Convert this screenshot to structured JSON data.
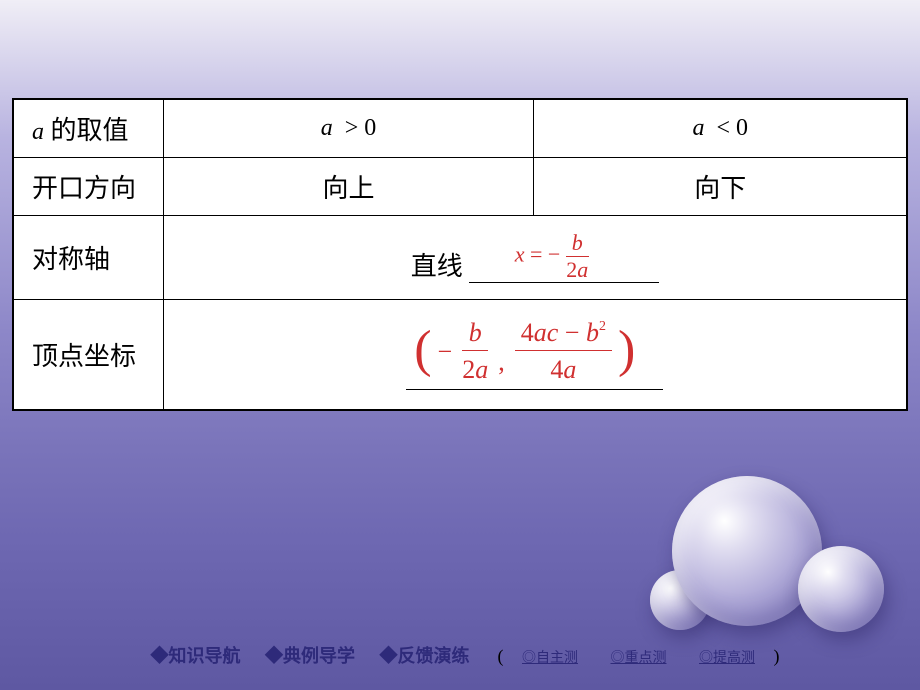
{
  "table": {
    "headers": {
      "row1c1_var": "a",
      "row1c1_desc": " 的取值",
      "row1c2": "a > 0",
      "row1c2_a": "a",
      "row1c2_op": ">",
      "row1c2_v": "0",
      "row1c3_a": "a",
      "row1c3_op": "<",
      "row1c3_v": "0",
      "row2c1": "开口方向",
      "row2c2": "向上",
      "row2c3": "向下",
      "row3c1": "对称轴",
      "row3_prefix": "直线",
      "axis_formula": {
        "lhs": "x",
        "eq": " = ",
        "minus": "−",
        "num_var": "b",
        "den_coeff": "2",
        "den_var": "a"
      },
      "row4c1": "顶点坐标",
      "vertex": {
        "left_paren": "(",
        "right_paren": ")",
        "minus1": "−",
        "f1_num": "b",
        "f1_den_c": "2",
        "f1_den_v": "a",
        "comma": ",",
        "f2_num_c1": "4",
        "f2_num_v1": "a",
        "f2_num_v2": "c",
        "f2_num_op": " − ",
        "f2_num_v3": "b",
        "f2_num_sup": "2",
        "f2_den_c": "4",
        "f2_den_v": "a"
      }
    }
  },
  "footer": {
    "link1": "◆知识导航",
    "link2": "◆典例导学",
    "link3": "◆反馈演练",
    "paren_l": "(",
    "small1": "◎自主测",
    "small2": "◎重点测",
    "small3": "◎提高测",
    "paren_r": ")"
  },
  "colors": {
    "formula": "#d03030",
    "link": "#2e2a7a",
    "border": "#000000",
    "bg_top": "#f0eef6",
    "bg_bottom": "#5e58a2"
  }
}
